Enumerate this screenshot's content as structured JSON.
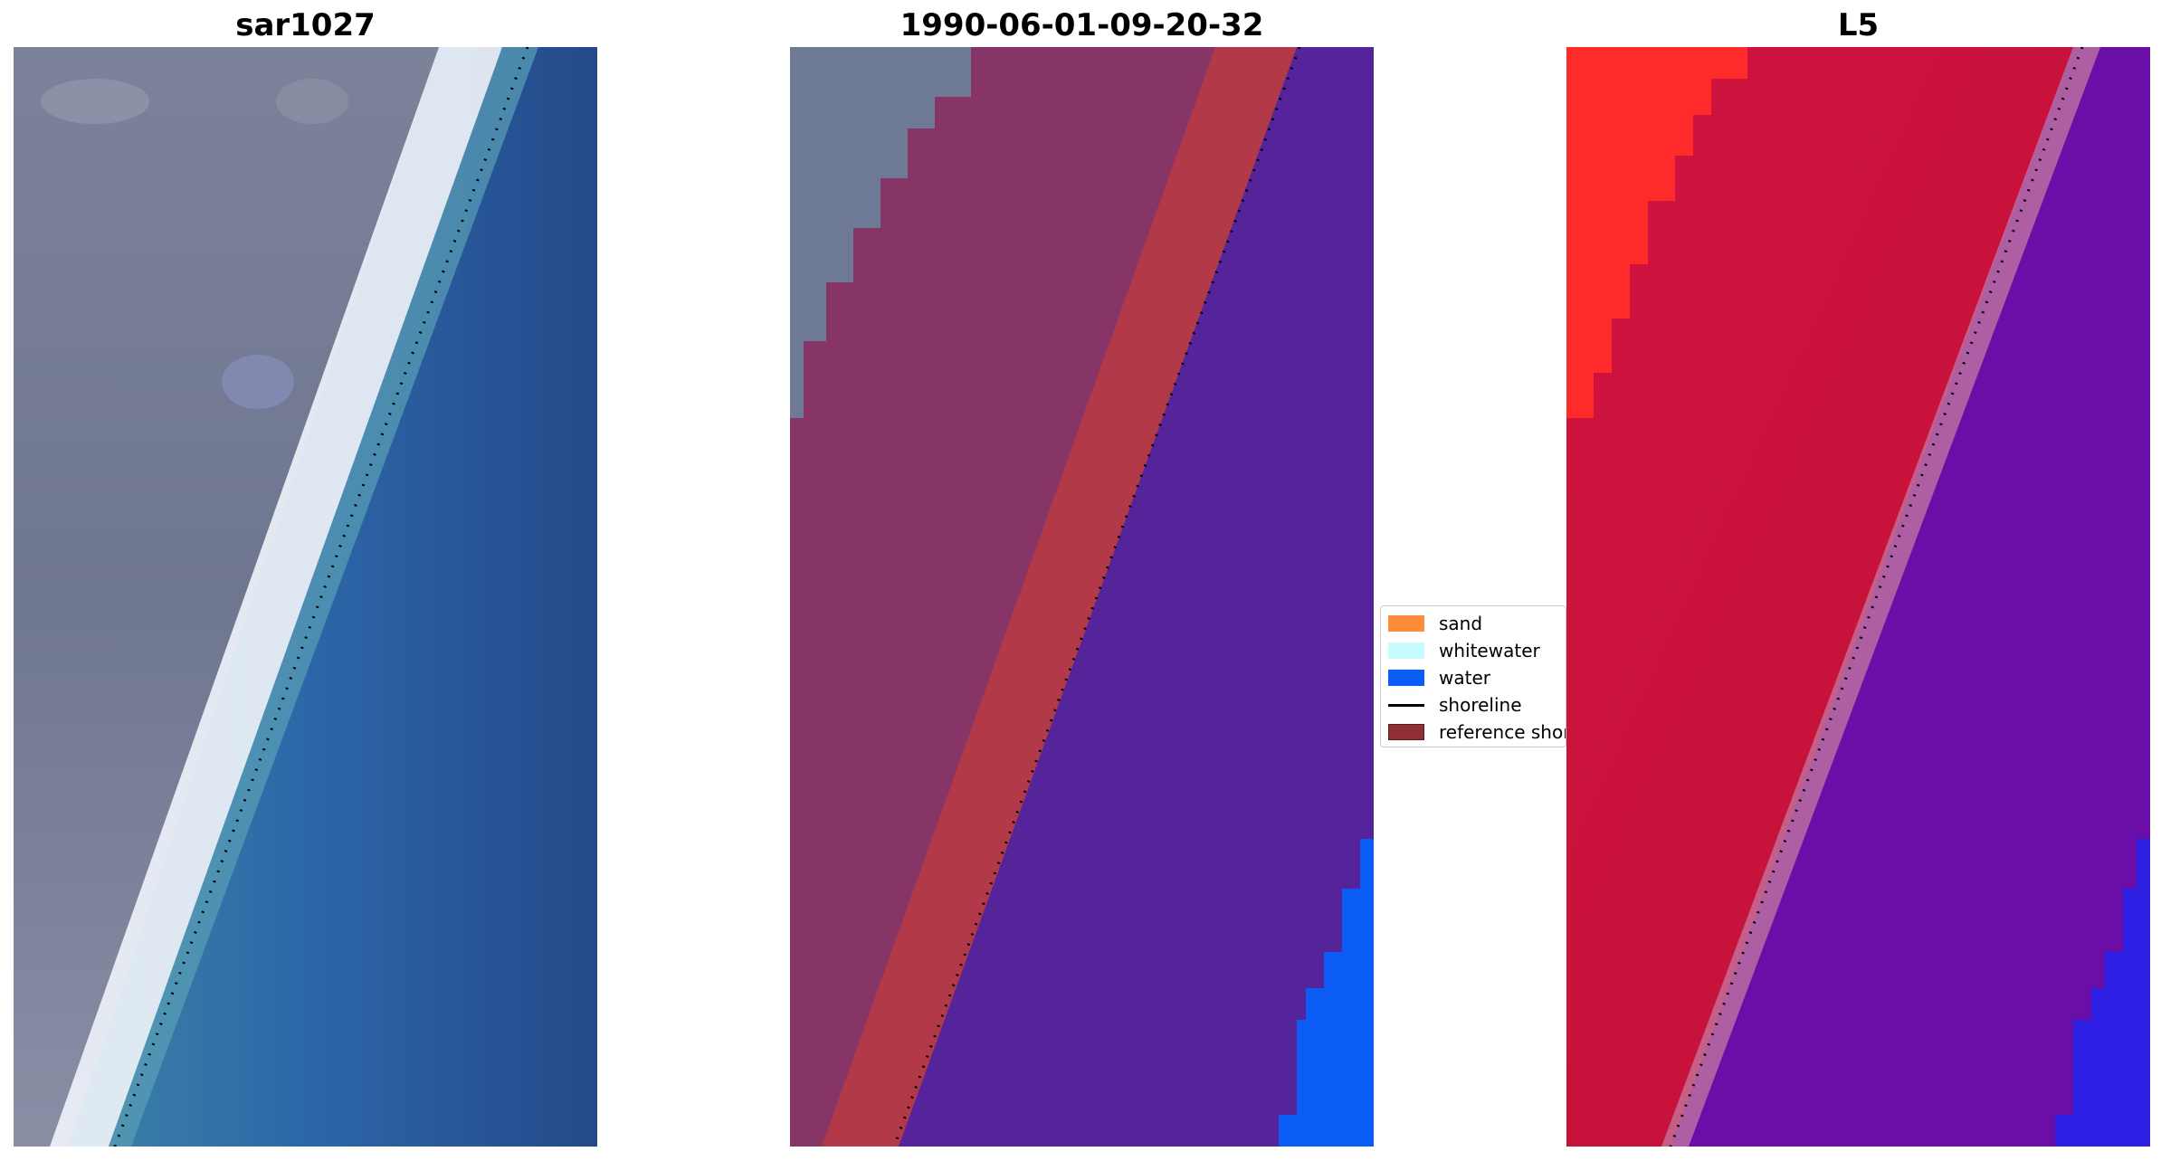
{
  "panels": [
    {
      "title": "sar1027"
    },
    {
      "title": "1990-06-01-09-20-32"
    },
    {
      "title": "L5"
    }
  ],
  "legend": {
    "items": [
      {
        "label": "sand",
        "color": "#ff8c3a",
        "kind": "patch"
      },
      {
        "label": "whitewater",
        "color": "#c8fcfc",
        "kind": "patch"
      },
      {
        "label": "water",
        "color": "#0a5cf5",
        "kind": "patch"
      },
      {
        "label": "shoreline",
        "color": "#000000",
        "kind": "line"
      },
      {
        "label": "reference shoreline",
        "color": "#8e3036",
        "kind": "patch"
      }
    ]
  },
  "colors": {
    "land_rgb": "#7a8096",
    "beach_white": "#eef2f8",
    "water_rgb": "#2f66a8",
    "land_class": "#873466",
    "reference_band": "#b23a48",
    "water_class": "#55249a",
    "water_bright": "#0a5cf5",
    "land_index": "#c4123c",
    "land_index_hot": "#ff1a1a",
    "water_index": "#6a0ea8",
    "water_index_blue": "#2222ee"
  }
}
